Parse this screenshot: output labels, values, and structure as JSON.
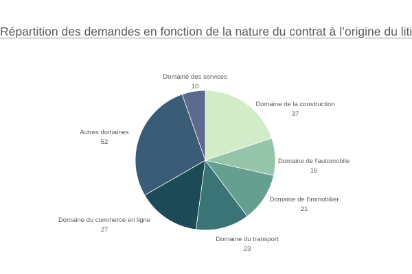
{
  "chart_data": {
    "type": "pie",
    "title": "Répartition des demandes en fonction de la nature du contrat à l’origine du litige",
    "start_angle": "12 o'clock",
    "direction": "clockwise",
    "slices": [
      {
        "label": "Domaine de la construction",
        "value": 37,
        "color": "#d2ebc8"
      },
      {
        "label": "Domaine de l'automobile",
        "value": 16,
        "color": "#95c4aa"
      },
      {
        "label": "Domaine de l'immobilier",
        "value": 21,
        "color": "#659f90"
      },
      {
        "label": "Domaine du transport",
        "value": 23,
        "color": "#3b7477"
      },
      {
        "label": "Domaine du commerce en ligne",
        "value": 27,
        "color": "#1c4a57"
      },
      {
        "label": "Autres domaines",
        "value": 52,
        "color": "#3b5c77"
      },
      {
        "label": "Domaine des services",
        "value": 10,
        "color": "#5d6a8e"
      }
    ]
  }
}
